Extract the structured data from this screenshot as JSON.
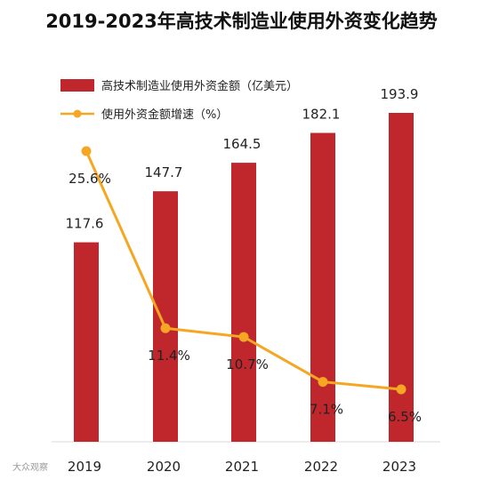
{
  "chart_data": {
    "type": "bar+line",
    "title": "2019-2023年高技术制造业使用外资变化趋势",
    "categories": [
      "2019",
      "2020",
      "2021",
      "2022",
      "2023"
    ],
    "series": [
      {
        "name": "高技术制造业使用外资金额（亿美元）",
        "type": "bar",
        "color": "#c0272d",
        "values": [
          117.6,
          147.7,
          164.5,
          182.1,
          193.9
        ],
        "labels": [
          "117.6",
          "147.7",
          "164.5",
          "182.1",
          "193.9"
        ]
      },
      {
        "name": "使用外资金额增速（%）",
        "type": "line",
        "color": "#f5a623",
        "values": [
          25.6,
          11.4,
          10.7,
          7.1,
          6.5
        ],
        "labels": [
          "25.6%",
          "11.4%",
          "10.7%",
          "7.1%",
          "6.5%"
        ]
      }
    ],
    "legend_position": "top-left",
    "grid": false
  },
  "watermark": "大众观察"
}
